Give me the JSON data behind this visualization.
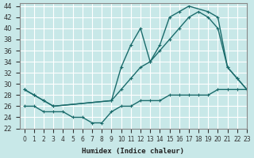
{
  "xlabel": "Humidex (Indice chaleur)",
  "xlim": [
    -0.5,
    23
  ],
  "ylim": [
    22,
    44.5
  ],
  "xticks": [
    0,
    1,
    2,
    3,
    4,
    5,
    6,
    7,
    8,
    9,
    10,
    11,
    12,
    13,
    14,
    15,
    16,
    17,
    18,
    19,
    20,
    21,
    22,
    23
  ],
  "yticks": [
    22,
    24,
    26,
    28,
    30,
    32,
    34,
    36,
    38,
    40,
    42,
    44
  ],
  "bg_color": "#c8e8e8",
  "line_color": "#1a6b6b",
  "grid_color": "#ffffff",
  "curve_top_x": [
    0,
    1,
    2,
    3,
    9,
    10,
    11,
    12,
    13,
    14,
    15,
    16,
    17,
    19,
    20,
    21,
    22,
    23
  ],
  "curve_top_y": [
    29,
    28,
    27,
    26,
    27,
    33,
    37,
    40,
    34,
    37,
    42,
    43,
    44,
    43,
    42,
    33,
    31,
    29
  ],
  "curve_mid_x": [
    0,
    1,
    2,
    3,
    9,
    10,
    11,
    12,
    13,
    14,
    15,
    16,
    17,
    18,
    19,
    20,
    21,
    22,
    23
  ],
  "curve_mid_y": [
    29,
    28,
    27,
    26,
    27,
    29,
    31,
    33,
    34,
    36,
    38,
    40,
    42,
    43,
    42,
    40,
    33,
    31,
    29
  ],
  "curve_bot_x": [
    0,
    1,
    2,
    3,
    4,
    5,
    6,
    7,
    8,
    9,
    10,
    11,
    12,
    13,
    14,
    15,
    16,
    17,
    18,
    19,
    20,
    21,
    22,
    23
  ],
  "curve_bot_y": [
    26,
    26,
    25,
    25,
    25,
    24,
    24,
    23,
    23,
    25,
    26,
    26,
    27,
    27,
    27,
    28,
    28,
    28,
    28,
    28,
    29,
    29,
    29,
    29
  ],
  "marker": "+"
}
